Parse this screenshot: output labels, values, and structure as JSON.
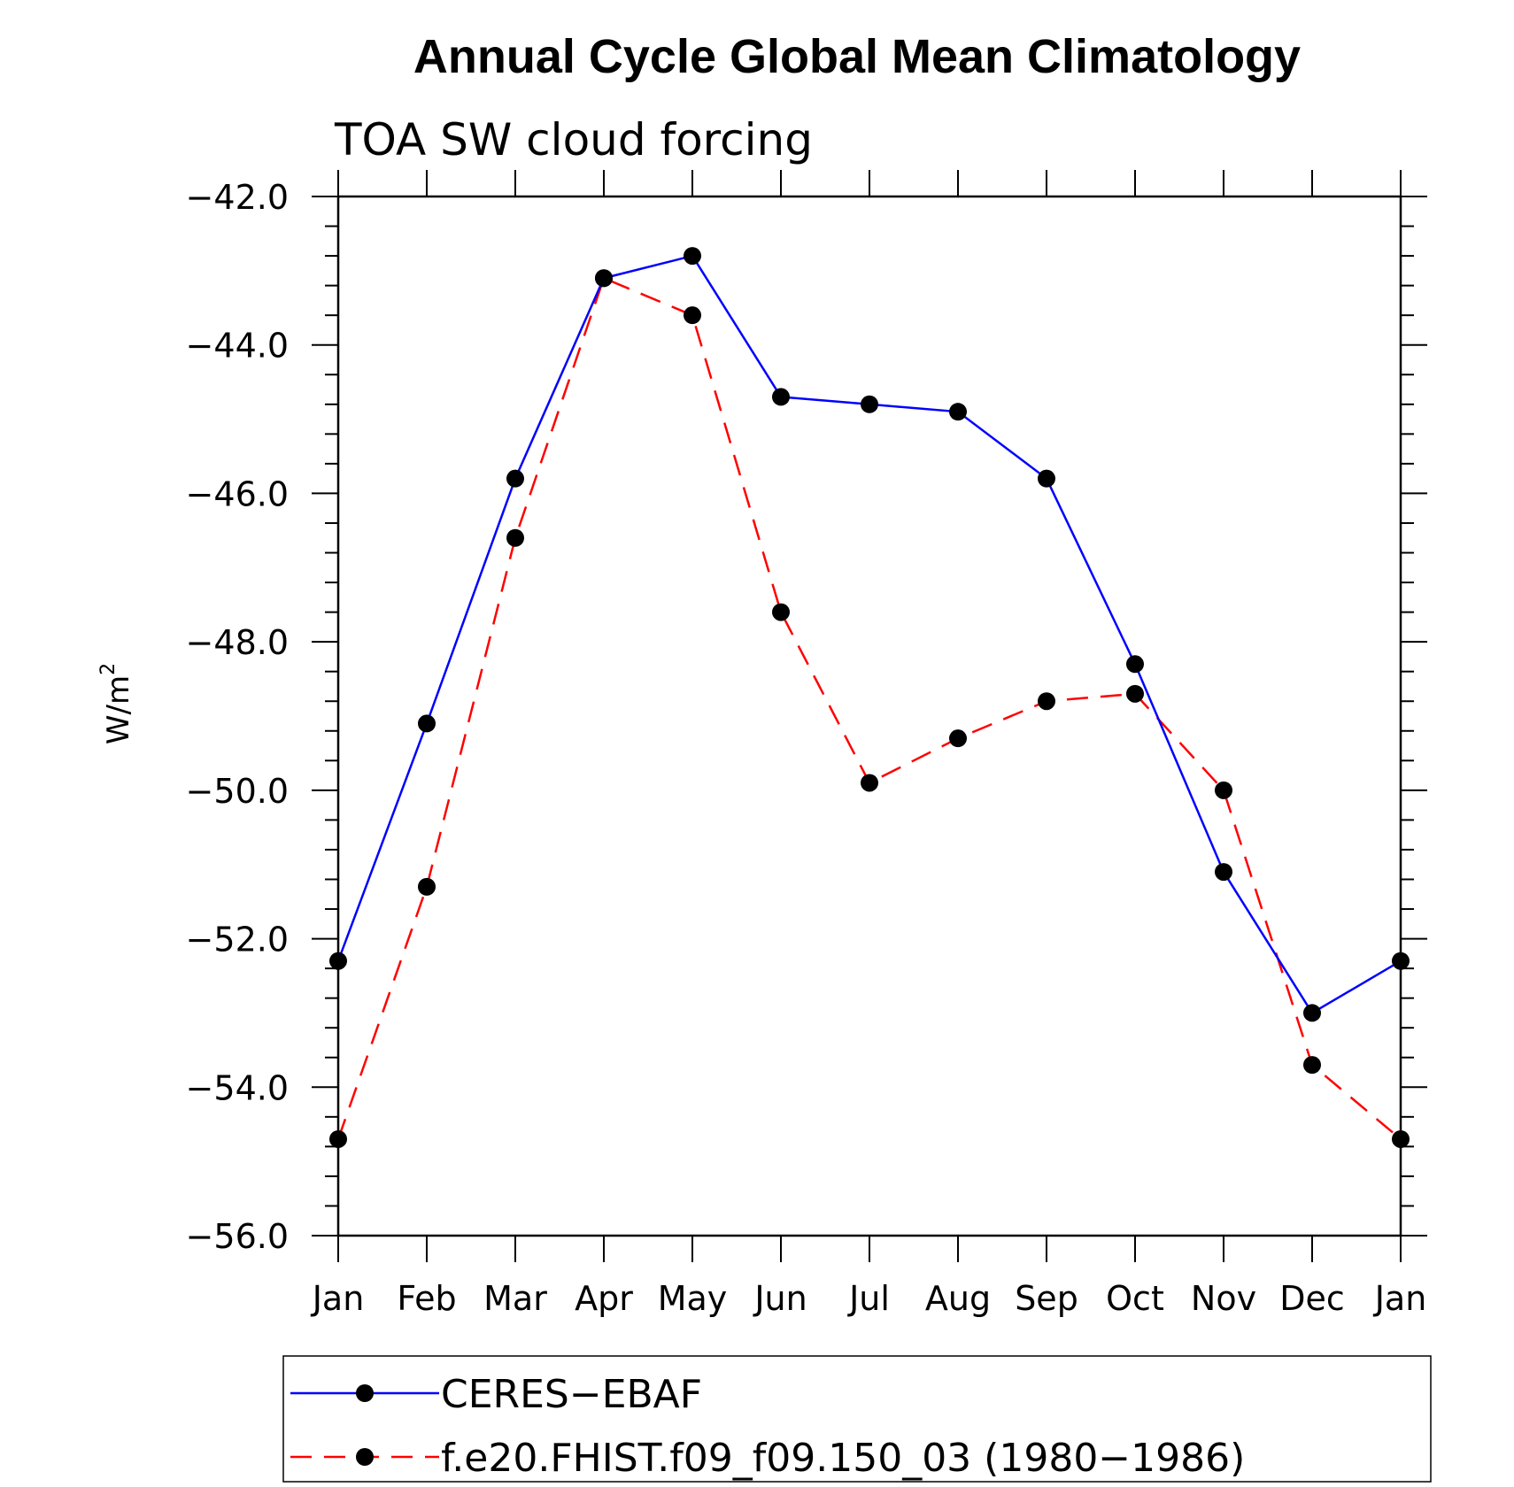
{
  "chart_data": {
    "type": "line",
    "title": "Annual Cycle Global Mean Climatology",
    "subtitle": "TOA SW cloud forcing",
    "ylabel": "W/m",
    "ylabel_sup": "2",
    "xlabel": "",
    "categories": [
      "Jan",
      "Feb",
      "Mar",
      "Apr",
      "May",
      "Jun",
      "Jul",
      "Aug",
      "Sep",
      "Oct",
      "Nov",
      "Dec",
      "Jan"
    ],
    "ylim": [
      -56.0,
      -42.0
    ],
    "yticks": [
      -42.0,
      -44.0,
      -46.0,
      -48.0,
      -50.0,
      -52.0,
      -54.0,
      -56.0
    ],
    "ytick_labels": [
      "−42.0",
      "−44.0",
      "−46.0",
      "−48.0",
      "−50.0",
      "−52.0",
      "−54.0",
      "−56.0"
    ],
    "grid": false,
    "legend_position": "bottom",
    "series": [
      {
        "name": "CERES−EBAF",
        "color": "#0000ff",
        "dash": "solid",
        "marker": "filled-circle",
        "values": [
          -52.3,
          -49.1,
          -45.8,
          -43.1,
          -42.8,
          -44.7,
          -44.8,
          -44.9,
          -45.8,
          -48.3,
          -51.1,
          -53.0,
          -52.3
        ]
      },
      {
        "name": "f.e20.FHIST.f09_f09.150_03 (1980−1986)",
        "color": "#ff0000",
        "dash": "dashed",
        "marker": "filled-circle",
        "values": [
          -54.7,
          -51.3,
          -46.6,
          -43.1,
          -43.6,
          -47.6,
          -49.9,
          -49.3,
          -48.8,
          -48.7,
          -50.0,
          -53.7,
          -54.7
        ]
      }
    ]
  }
}
